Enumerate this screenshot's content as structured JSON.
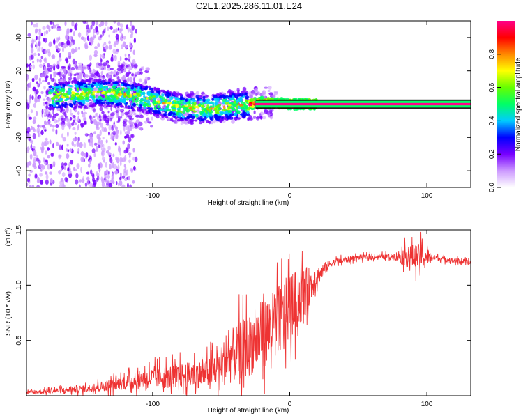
{
  "title": "C2E1.2025.286.11.01.E24",
  "chart_data": [
    {
      "type": "heatmap",
      "xlabel": "Height of straight line (km)",
      "ylabel": "Frequency (Hz)",
      "xlim": [
        -192,
        132
      ],
      "ylim": [
        -50,
        50
      ],
      "xticks": [
        -100,
        0,
        100
      ],
      "xtick_labels": [
        "-100",
        "0",
        "100"
      ],
      "yticks": [
        -40,
        -20,
        0,
        20,
        40
      ],
      "ytick_labels": [
        "-40",
        "-20",
        "0",
        "20",
        "40"
      ],
      "tone_band": {
        "x_start": -25,
        "x_end": 132,
        "freq_center": 0,
        "freq_halfwidth": 2
      },
      "ridge": [
        {
          "x": -170,
          "f": 5
        },
        {
          "x": -140,
          "f": 7
        },
        {
          "x": -120,
          "f": 6
        },
        {
          "x": -100,
          "f": 2
        },
        {
          "x": -80,
          "f": -2
        },
        {
          "x": -60,
          "f": -3
        },
        {
          "x": -40,
          "f": -1
        },
        {
          "x": -20,
          "f": 1
        },
        {
          "x": 0,
          "f": 0
        },
        {
          "x": 20,
          "f": 0
        }
      ],
      "colorbar": {
        "label": "Normalized spectral amplitude",
        "range": [
          0,
          1
        ],
        "ticks": [
          0.0,
          0.2,
          0.4,
          0.6,
          0.8
        ],
        "tick_labels": [
          "0.0",
          "0.2",
          "0.4",
          "0.6",
          "0.8"
        ],
        "colors": [
          "#ffffff",
          "#cc99ff",
          "#7700ff",
          "#0000ff",
          "#00ccff",
          "#00ff66",
          "#66ff00",
          "#ffff00",
          "#ff8800",
          "#ff0000",
          "#ff0088"
        ]
      }
    },
    {
      "type": "line",
      "xlabel": "Height of straight line (km)",
      "ylabel": "SNR (10 * v/v)",
      "y_multiplier": "(x10",
      "y_multiplier_exp": "4",
      "y_multiplier_close": ")",
      "xlim": [
        -192,
        132
      ],
      "ylim": [
        0,
        1.5
      ],
      "xticks": [
        -100,
        0,
        100
      ],
      "xtick_labels": [
        "-100",
        "0",
        "100"
      ],
      "yticks": [
        0.5,
        1.0,
        1.5
      ],
      "ytick_labels": [
        "0.5",
        "1.0",
        "1.5"
      ],
      "series": [
        {
          "name": "SNR",
          "color": "#ee3333",
          "envelope": [
            {
              "x": -192,
              "base": 0.03,
              "spread": 0.02
            },
            {
              "x": -150,
              "base": 0.06,
              "spread": 0.04
            },
            {
              "x": -120,
              "base": 0.12,
              "spread": 0.08
            },
            {
              "x": -100,
              "base": 0.16,
              "spread": 0.12
            },
            {
              "x": -80,
              "base": 0.18,
              "spread": 0.14
            },
            {
              "x": -60,
              "base": 0.2,
              "spread": 0.16
            },
            {
              "x": -50,
              "base": 0.28,
              "spread": 0.25
            },
            {
              "x": -40,
              "base": 0.38,
              "spread": 0.32
            },
            {
              "x": -30,
              "base": 0.45,
              "spread": 0.35
            },
            {
              "x": -20,
              "base": 0.55,
              "spread": 0.38
            },
            {
              "x": -10,
              "base": 0.65,
              "spread": 0.4
            },
            {
              "x": 0,
              "base": 0.8,
              "spread": 0.38
            },
            {
              "x": 10,
              "base": 0.92,
              "spread": 0.3
            },
            {
              "x": 20,
              "base": 1.08,
              "spread": 0.12
            },
            {
              "x": 30,
              "base": 1.2,
              "spread": 0.04
            },
            {
              "x": 50,
              "base": 1.25,
              "spread": 0.03
            },
            {
              "x": 75,
              "base": 1.26,
              "spread": 0.03
            },
            {
              "x": 85,
              "base": 1.26,
              "spread": 0.12
            },
            {
              "x": 95,
              "base": 1.26,
              "spread": 0.15
            },
            {
              "x": 105,
              "base": 1.25,
              "spread": 0.03
            },
            {
              "x": 132,
              "base": 1.2,
              "spread": 0.03
            }
          ]
        }
      ]
    }
  ]
}
